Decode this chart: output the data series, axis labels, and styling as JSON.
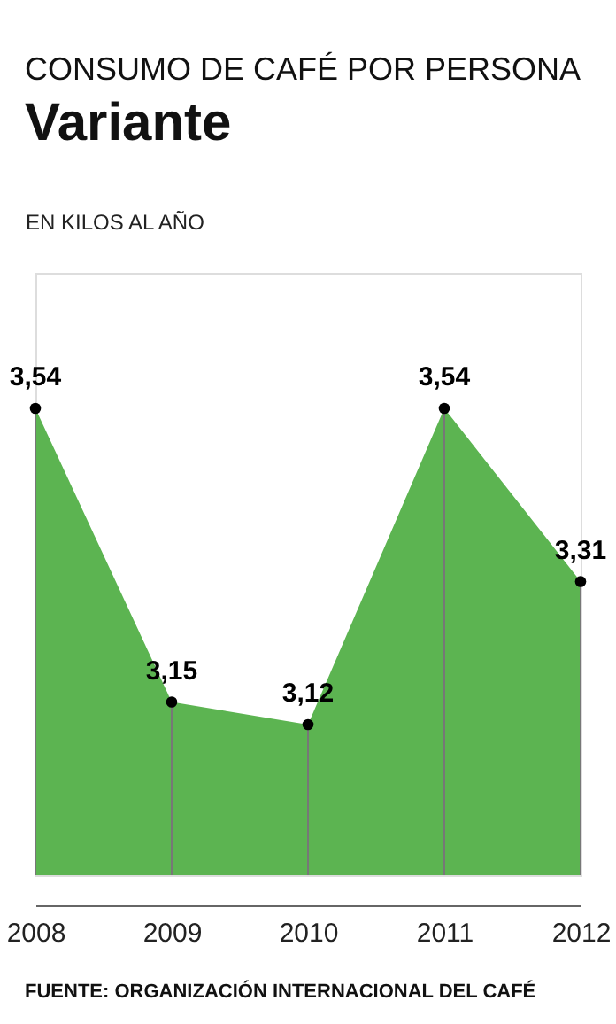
{
  "chart_data": {
    "type": "area",
    "title": "CONSUMO DE CAFÉ POR PERSONA",
    "subtitle": "Variante",
    "ylabel": "EN KILOS AL AÑO",
    "categories": [
      "2008",
      "2009",
      "2010",
      "2011",
      "2012"
    ],
    "values": [
      3.54,
      3.15,
      3.12,
      3.54,
      3.31
    ],
    "value_labels": [
      "3,54",
      "3,15",
      "3,12",
      "3,54",
      "3,31"
    ],
    "color": "#5cb451",
    "marker": "circle",
    "ylim": [
      2.92,
      3.72
    ],
    "tick_labels": "x",
    "annotations": [
      "FUENTE: ORGANIZACIÓN INTERNACIONAL DEL CAFÉ"
    ]
  }
}
